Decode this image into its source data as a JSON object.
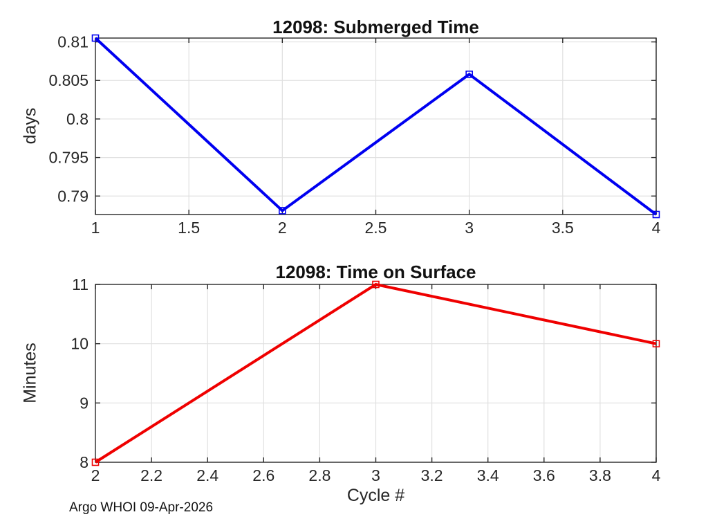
{
  "figure": {
    "background": "#ffffff",
    "xlabel": "Cycle #",
    "footer": "Argo WHOI 09-Apr-2026",
    "axes_color": "#262626",
    "grid_color": "#e0e0e0"
  },
  "chart_data": [
    {
      "type": "line",
      "title": "12098: Submerged Time",
      "ylabel": "days",
      "x": [
        1,
        2,
        3,
        4
      ],
      "y": [
        0.8105,
        0.7881,
        0.8058,
        0.7876
      ],
      "xlim": [
        1,
        4
      ],
      "ylim": [
        0.7876,
        0.8105
      ],
      "xticks": [
        1,
        1.5,
        2,
        2.5,
        3,
        3.5,
        4
      ],
      "xtick_labels": [
        "1",
        "1.5",
        "2",
        "2.5",
        "3",
        "3.5",
        "4"
      ],
      "yticks": [
        0.79,
        0.795,
        0.8,
        0.805,
        0.81
      ],
      "ytick_labels": [
        "0.79",
        "0.795",
        "0.8",
        "0.805",
        "0.81"
      ],
      "color": "#0000f0",
      "marker": "square",
      "grid": true,
      "legend": "none"
    },
    {
      "type": "line",
      "title": "12098: Time on Surface",
      "ylabel": "Minutes",
      "x": [
        2,
        3,
        4
      ],
      "y": [
        8,
        11,
        10
      ],
      "xlim": [
        2,
        4
      ],
      "ylim": [
        8,
        11
      ],
      "xticks": [
        2,
        2.2,
        2.4,
        2.6,
        2.8,
        3,
        3.2,
        3.4,
        3.6,
        3.8,
        4
      ],
      "xtick_labels": [
        "2",
        "2.2",
        "2.4",
        "2.6",
        "2.8",
        "3",
        "3.2",
        "3.4",
        "3.6",
        "3.8",
        "4"
      ],
      "yticks": [
        8,
        9,
        10,
        11
      ],
      "ytick_labels": [
        "8",
        "9",
        "10",
        "11"
      ],
      "color": "#ef0000",
      "marker": "square",
      "grid": true,
      "legend": "none"
    }
  ]
}
